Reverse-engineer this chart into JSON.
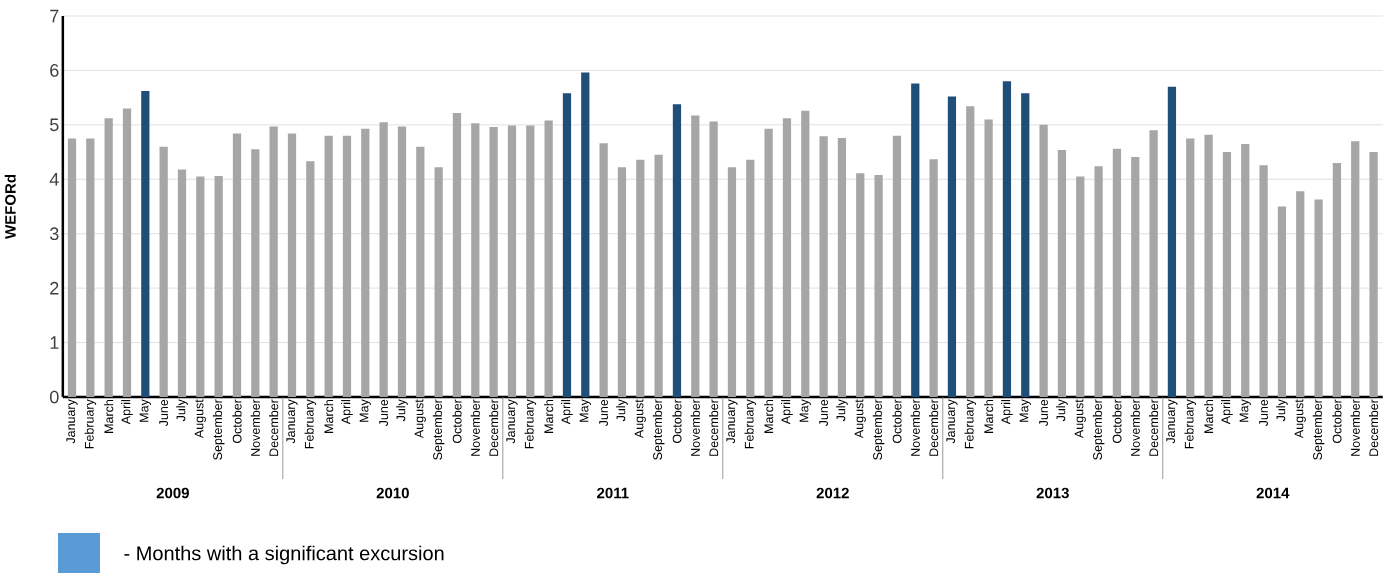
{
  "chart_data": {
    "type": "bar",
    "ylabel": "WEFORd",
    "categories": [
      "January",
      "February",
      "March",
      "April",
      "May",
      "June",
      "July",
      "August",
      "September",
      "October",
      "November",
      "December",
      "January",
      "February",
      "March",
      "April",
      "May",
      "June",
      "July",
      "August",
      "September",
      "October",
      "November",
      "December",
      "January",
      "February",
      "March",
      "April",
      "May",
      "June",
      "July",
      "August",
      "September",
      "October",
      "November",
      "December",
      "January",
      "February",
      "March",
      "April",
      "May",
      "June",
      "July",
      "August",
      "September",
      "October",
      "November",
      "December",
      "January",
      "February",
      "March",
      "April",
      "May",
      "June",
      "July",
      "August",
      "September",
      "October",
      "November",
      "December",
      "January",
      "February",
      "March",
      "April",
      "May",
      "June",
      "July",
      "August",
      "September",
      "October",
      "November",
      "December"
    ],
    "values": [
      4.75,
      4.75,
      5.12,
      5.3,
      5.62,
      4.6,
      4.18,
      4.05,
      4.06,
      4.84,
      4.55,
      4.97,
      4.84,
      4.33,
      4.8,
      4.8,
      4.93,
      5.05,
      4.97,
      4.6,
      4.22,
      5.22,
      5.03,
      4.96,
      4.99,
      4.99,
      5.08,
      5.58,
      5.96,
      4.66,
      4.22,
      4.36,
      4.45,
      5.38,
      5.17,
      5.06,
      4.22,
      4.36,
      4.93,
      5.12,
      5.26,
      4.79,
      4.76,
      4.11,
      4.08,
      4.8,
      5.76,
      4.37,
      5.52,
      5.34,
      5.1,
      5.8,
      5.58,
      5.0,
      4.54,
      4.05,
      4.24,
      4.56,
      4.41,
      4.9,
      5.7,
      4.75,
      4.82,
      4.5,
      4.65,
      4.26,
      3.5,
      3.78,
      3.63,
      4.3,
      4.7,
      4.5
    ],
    "colors": [
      "#a6a6a6",
      "#a6a6a6",
      "#a6a6a6",
      "#a6a6a6",
      "#1f4e79",
      "#a6a6a6",
      "#a6a6a6",
      "#a6a6a6",
      "#a6a6a6",
      "#a6a6a6",
      "#a6a6a6",
      "#a6a6a6",
      "#a6a6a6",
      "#a6a6a6",
      "#a6a6a6",
      "#a6a6a6",
      "#a6a6a6",
      "#a6a6a6",
      "#a6a6a6",
      "#a6a6a6",
      "#a6a6a6",
      "#a6a6a6",
      "#a6a6a6",
      "#a6a6a6",
      "#a6a6a6",
      "#a6a6a6",
      "#a6a6a6",
      "#1f4e79",
      "#1f4e79",
      "#a6a6a6",
      "#a6a6a6",
      "#a6a6a6",
      "#a6a6a6",
      "#1f4e79",
      "#a6a6a6",
      "#a6a6a6",
      "#a6a6a6",
      "#a6a6a6",
      "#a6a6a6",
      "#a6a6a6",
      "#a6a6a6",
      "#a6a6a6",
      "#a6a6a6",
      "#a6a6a6",
      "#a6a6a6",
      "#a6a6a6",
      "#1f4e79",
      "#a6a6a6",
      "#1f4e79",
      "#a6a6a6",
      "#a6a6a6",
      "#1f4e79",
      "#1f4e79",
      "#a6a6a6",
      "#a6a6a6",
      "#a6a6a6",
      "#a6a6a6",
      "#a6a6a6",
      "#a6a6a6",
      "#a6a6a6",
      "#1f4e79",
      "#a6a6a6",
      "#a6a6a6",
      "#a6a6a6",
      "#a6a6a6",
      "#a6a6a6",
      "#a6a6a6",
      "#a6a6a6",
      "#a6a6a6",
      "#a6a6a6",
      "#a6a6a6",
      "#a6a6a6"
    ],
    "ylim": [
      0,
      7
    ],
    "yticks": [
      0,
      1,
      2,
      3,
      4,
      5,
      6,
      7
    ],
    "grid": "y",
    "annotations": [
      "2009",
      "2010",
      "2011",
      "2012",
      "2013",
      "2014",
      "- Months with a significant excursion"
    ]
  }
}
